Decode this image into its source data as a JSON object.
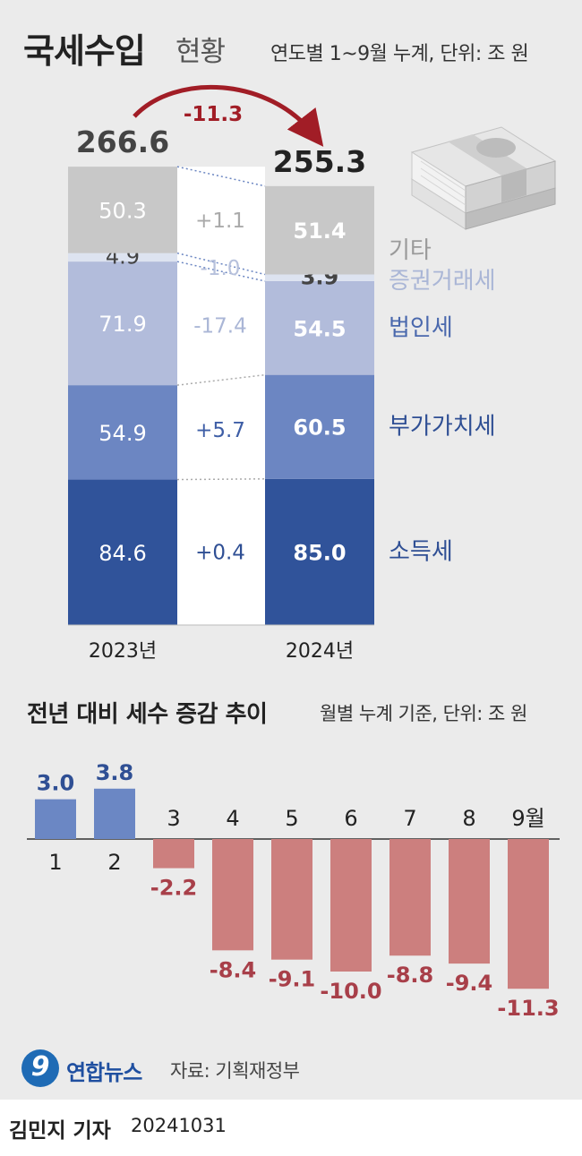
{
  "title": {
    "main": "국세수입",
    "sub": "현황",
    "unit": "연도별 1~9월 누계, 단위: 조 원"
  },
  "change_label": "-11.3",
  "section2": {
    "title": "전년 대비 세수 증감 추이",
    "unit": "월별 누계 기준, 단위: 조 원"
  },
  "source": "자료: 기획재정부",
  "logo_text": "연합뉴스",
  "logo_mark": "9",
  "reporter": "김민지 기자",
  "date": "20241031",
  "colors": {
    "etc": "#c8c8c8",
    "securities": "#dde3f0",
    "corporate": "#b2bcdb",
    "vat": "#6c86c2",
    "income": "#30539a",
    "positive_bar": "#6b87c4",
    "negative_bar": "#cc7f7e",
    "negative_text": "#a83f49",
    "arrow": "#a11d26"
  },
  "chart_data": [
    {
      "type": "bar",
      "subtype": "stacked",
      "categories": [
        "2023년",
        "2024년"
      ],
      "totals": [
        266.6,
        255.3
      ],
      "series": [
        {
          "name": "소득세",
          "values": [
            84.6,
            85.0
          ],
          "change": "+0.4",
          "color": "#30539a"
        },
        {
          "name": "부가가치세",
          "values": [
            54.9,
            60.5
          ],
          "change": "+5.7",
          "color": "#6c86c2"
        },
        {
          "name": "법인세",
          "values": [
            71.9,
            54.5
          ],
          "change": "-17.4",
          "color": "#b2bcdb"
        },
        {
          "name": "증권거래세",
          "values": [
            4.9,
            3.9
          ],
          "change": "-1.0",
          "color": "#dde3f0"
        },
        {
          "name": "기타",
          "values": [
            50.3,
            51.4
          ],
          "change": "+1.1",
          "color": "#c8c8c8"
        }
      ]
    },
    {
      "type": "bar",
      "categories": [
        "1",
        "2",
        "3",
        "4",
        "5",
        "6",
        "7",
        "8",
        "9월"
      ],
      "values": [
        3.0,
        3.8,
        -2.2,
        -8.4,
        -9.1,
        -10.0,
        -8.8,
        -9.4,
        -11.3
      ],
      "value_labels": [
        "3.0",
        "3.8",
        "-2.2",
        "-8.4",
        "-9.1",
        "-10.0",
        "-8.8",
        "-9.4",
        "-11.3"
      ]
    }
  ]
}
